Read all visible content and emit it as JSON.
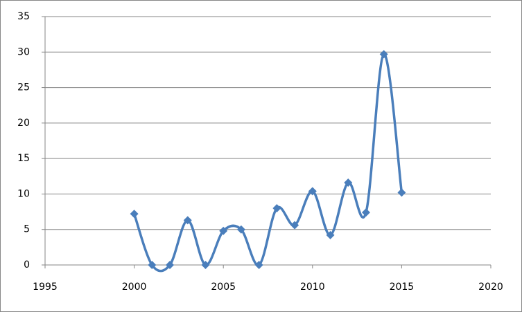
{
  "chart_data": {
    "type": "scatter",
    "smooth": true,
    "markers": "diamond",
    "x": [
      2000,
      2001,
      2002,
      2003,
      2004,
      2005,
      2006,
      2007,
      2008,
      2009,
      2010,
      2011,
      2012,
      2013,
      2014,
      2015
    ],
    "series": [
      {
        "color": "#4a7ebb",
        "values": [
          7.2,
          0,
          0,
          6.3,
          0,
          4.8,
          5.0,
          0,
          8.0,
          5.6,
          10.4,
          4.2,
          11.6,
          7.4,
          29.7,
          10.2
        ]
      }
    ],
    "xlim": [
      1995,
      2020
    ],
    "xticks": [
      1995,
      2000,
      2005,
      2010,
      2015,
      2020
    ],
    "ylim": [
      0,
      35
    ],
    "yticks": [
      0,
      5,
      10,
      15,
      20,
      25,
      30,
      35
    ],
    "grid": true
  }
}
